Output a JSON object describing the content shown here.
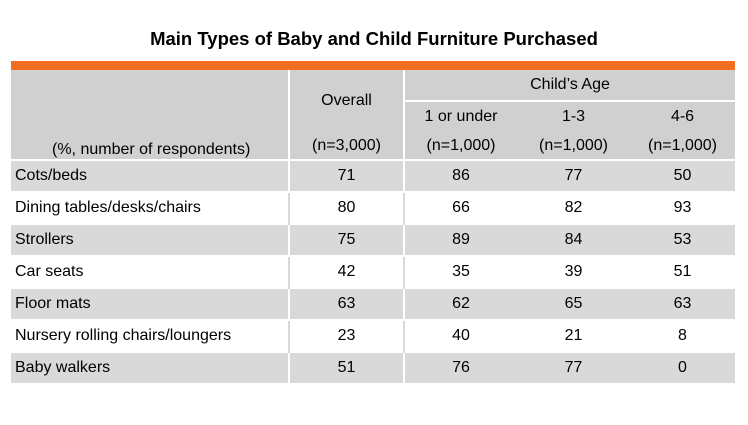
{
  "title": "Main Types of Baby and Child Furniture Purchased",
  "colors": {
    "accent_bar": "#f26f21",
    "header_bg": "#d0d0d0",
    "row_shade": "#d9d9d9"
  },
  "header": {
    "row_label": "(%, number of respondents)",
    "overall": "Overall",
    "overall_n": "(n=3,000)",
    "group": "Child’s Age",
    "age_cols": [
      {
        "label": "1 or under",
        "n": "(n=1,000)"
      },
      {
        "label": "1-3",
        "n": "(n=1,000)"
      },
      {
        "label": "4-6",
        "n": "(n=1,000)"
      }
    ]
  },
  "rows": [
    {
      "item": "Cots/beds",
      "overall": "71",
      "a1": "86",
      "a2": "77",
      "a3": "50"
    },
    {
      "item": "Dining tables/desks/chairs",
      "overall": "80",
      "a1": "66",
      "a2": "82",
      "a3": "93"
    },
    {
      "item": "Strollers",
      "overall": "75",
      "a1": "89",
      "a2": "84",
      "a3": "53"
    },
    {
      "item": "Car seats",
      "overall": "42",
      "a1": "35",
      "a2": "39",
      "a3": "51"
    },
    {
      "item": "Floor mats",
      "overall": "63",
      "a1": "62",
      "a2": "65",
      "a3": "63"
    },
    {
      "item": "Nursery rolling chairs/loungers",
      "overall": "23",
      "a1": "40",
      "a2": "21",
      "a3": "8"
    },
    {
      "item": "Baby walkers",
      "overall": "51",
      "a1": "76",
      "a2": "77",
      "a3": "0"
    }
  ]
}
